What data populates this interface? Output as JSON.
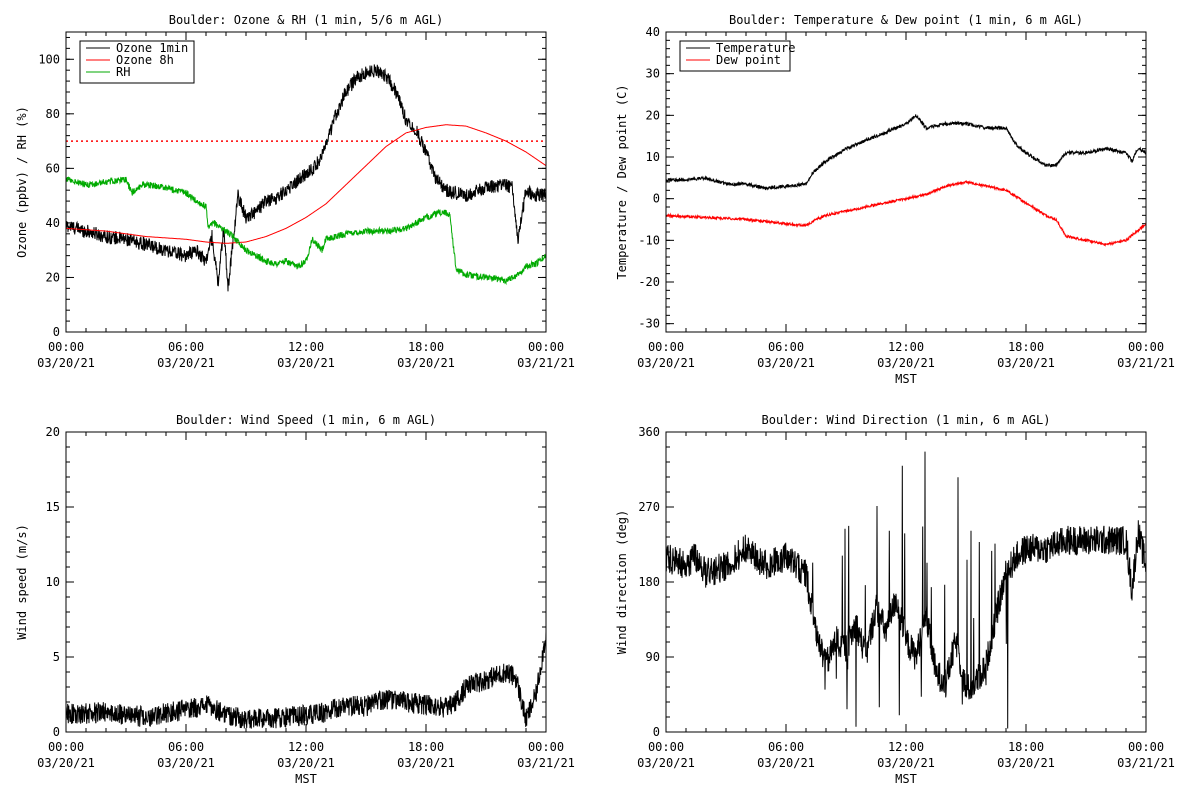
{
  "chart_data": [
    {
      "type": "line",
      "id": "ozone",
      "title": "Boulder: Ozone & RH (1 min, 5/6 m AGL)",
      "xlabel": "",
      "ylabel": "Ozone (ppbv) / RH (%)",
      "xlim": [
        0,
        24
      ],
      "ylim": [
        0,
        110
      ],
      "yticks": [
        0,
        20,
        40,
        60,
        80,
        100
      ],
      "xticks": [
        0,
        6,
        12,
        18,
        24
      ],
      "xtick_labels": [
        [
          "00:00",
          "03/20/21"
        ],
        [
          "06:00",
          "03/20/21"
        ],
        [
          "12:00",
          "03/20/21"
        ],
        [
          "18:00",
          "03/20/21"
        ],
        [
          "00:00",
          "03/21/21"
        ]
      ],
      "legend": "top-left",
      "reference_lines": [
        {
          "y": 70,
          "style": "dotted",
          "color": "#ff0000"
        }
      ],
      "series": [
        {
          "name": "Ozone 1min",
          "color": "#000000",
          "noise": 2.5,
          "x": [
            0,
            1,
            2,
            3,
            4,
            5,
            6,
            6.5,
            7,
            7.3,
            7.6,
            7.9,
            8.1,
            8.3,
            8.6,
            9,
            9.5,
            10,
            10.5,
            11,
            11.5,
            12,
            12.5,
            13,
            13.5,
            14,
            14.5,
            15,
            15.5,
            16,
            16.5,
            17,
            17.5,
            18,
            18.5,
            19,
            19.5,
            20,
            21,
            22,
            22.3,
            22.6,
            23,
            23.5,
            24
          ],
          "y": [
            39,
            37,
            35,
            34,
            32,
            30,
            28,
            30,
            26,
            35,
            18,
            38,
            16,
            30,
            50,
            42,
            44,
            48,
            49,
            52,
            55,
            58,
            61,
            68,
            80,
            88,
            93,
            95,
            96,
            94,
            88,
            78,
            74,
            66,
            56,
            52,
            51,
            50,
            53,
            54,
            53,
            34,
            52,
            50,
            51
          ]
        },
        {
          "name": "Ozone 8h",
          "color": "#ff0000",
          "noise": 0,
          "x": [
            0,
            2,
            4,
            6,
            7,
            8,
            9,
            10,
            11,
            12,
            13,
            14,
            15,
            16,
            17,
            18,
            19,
            20,
            21,
            22,
            23,
            24
          ],
          "y": [
            38,
            37,
            35,
            34,
            33,
            32.5,
            33,
            35,
            38,
            42,
            47,
            54,
            61,
            68,
            73,
            75,
            76,
            75.5,
            73,
            70,
            66,
            61
          ]
        },
        {
          "name": "RH",
          "color": "#00aa00",
          "noise": 1.2,
          "x": [
            0,
            1,
            2,
            3,
            3.3,
            3.8,
            4,
            5,
            5.5,
            6,
            6.5,
            7,
            7.1,
            7.4,
            8,
            8.5,
            9,
            9.5,
            10,
            10.5,
            11,
            11.5,
            12,
            12.3,
            12.8,
            13,
            14,
            15,
            16,
            17,
            17.5,
            18,
            18.8,
            19.2,
            19.5,
            20,
            21,
            22,
            22.6,
            23,
            23.5,
            24
          ],
          "y": [
            56,
            54,
            55,
            56,
            51,
            54,
            54,
            53,
            52,
            51,
            48,
            46,
            38,
            40,
            37,
            34,
            30,
            28,
            26,
            25,
            26,
            24,
            26,
            34,
            30,
            34,
            36,
            37,
            37,
            38,
            40,
            42,
            44,
            43,
            23,
            21,
            20,
            19,
            21,
            24,
            25,
            28
          ]
        }
      ]
    },
    {
      "type": "line",
      "id": "temperature",
      "title": "Boulder: Temperature & Dew point (1 min, 6 m AGL)",
      "xlabel": "MST",
      "ylabel": "Temperature / Dew point (C)",
      "xlim": [
        0,
        24
      ],
      "ylim": [
        -32,
        40
      ],
      "yticks": [
        -30,
        -20,
        -10,
        0,
        10,
        20,
        30,
        40
      ],
      "xticks": [
        0,
        6,
        12,
        18,
        24
      ],
      "xtick_labels": [
        [
          "00:00",
          "03/20/21"
        ],
        [
          "06:00",
          "03/20/21"
        ],
        [
          "12:00",
          "03/20/21"
        ],
        [
          "18:00",
          "03/20/21"
        ],
        [
          "00:00",
          "03/21/21"
        ]
      ],
      "legend": "top-left",
      "series": [
        {
          "name": "Temperature",
          "color": "#000000",
          "noise": 0.4,
          "x": [
            0,
            1,
            2,
            3,
            4,
            5,
            6,
            7,
            7.3,
            8,
            9,
            10,
            11,
            12,
            12.5,
            13,
            14,
            15,
            16,
            17,
            17.5,
            18,
            19,
            19.5,
            20,
            21,
            22,
            23,
            23.3,
            23.6,
            24
          ],
          "y": [
            4.5,
            4.5,
            5,
            3.5,
            3.5,
            2.5,
            3,
            3.5,
            6,
            9,
            12,
            14,
            16,
            18,
            20,
            17,
            18,
            18,
            17,
            17,
            13,
            11,
            8,
            8,
            11,
            11,
            12,
            11,
            9,
            12,
            11
          ]
        },
        {
          "name": "Dew point",
          "color": "#ff0000",
          "noise": 0.3,
          "x": [
            0,
            2,
            4,
            6,
            7,
            7.5,
            8,
            9,
            10,
            11,
            12,
            13,
            14,
            15,
            16,
            17,
            18,
            19,
            19.5,
            20,
            21,
            22,
            23,
            23.5,
            24
          ],
          "y": [
            -4,
            -4.5,
            -5,
            -6,
            -6.5,
            -5,
            -4,
            -3,
            -2,
            -1,
            0,
            1,
            3,
            4,
            3,
            2,
            -1,
            -4,
            -5,
            -9,
            -10,
            -11,
            -10,
            -8,
            -6
          ]
        }
      ]
    },
    {
      "type": "line",
      "id": "wind-speed",
      "title": "Boulder: Wind Speed (1 min, 6 m AGL)",
      "xlabel": "MST",
      "ylabel": "Wind speed (m/s)",
      "xlim": [
        0,
        24
      ],
      "ylim": [
        0,
        20
      ],
      "yticks": [
        0,
        5,
        10,
        15,
        20
      ],
      "xticks": [
        0,
        6,
        12,
        18,
        24
      ],
      "xtick_labels": [
        [
          "00:00",
          "03/20/21"
        ],
        [
          "06:00",
          "03/20/21"
        ],
        [
          "12:00",
          "03/20/21"
        ],
        [
          "18:00",
          "03/20/21"
        ],
        [
          "00:00",
          "03/21/21"
        ]
      ],
      "series": [
        {
          "name": "",
          "color": "#000000",
          "noise": 0.7,
          "x": [
            0,
            2,
            4,
            6,
            7,
            8,
            9,
            10,
            11,
            12,
            13,
            14,
            15,
            16,
            17,
            18,
            19,
            19.5,
            20,
            21,
            22,
            22.5,
            23,
            23.5,
            24
          ],
          "y": [
            1.2,
            1.3,
            1.0,
            1.5,
            1.8,
            1.2,
            0.8,
            0.9,
            1.0,
            1.1,
            1.3,
            1.8,
            1.7,
            2.2,
            2.0,
            1.8,
            1.6,
            2.0,
            3.0,
            3.5,
            4.0,
            3.6,
            0.8,
            2.5,
            6.5
          ]
        }
      ]
    },
    {
      "type": "line",
      "id": "wind-direction",
      "title": "Boulder: Wind Direction (1 min, 6 m AGL)",
      "xlabel": "MST",
      "ylabel": "Wind direction (deg)",
      "xlim": [
        0,
        24
      ],
      "ylim": [
        0,
        360
      ],
      "yticks": [
        0,
        90,
        180,
        270,
        360
      ],
      "xticks": [
        0,
        6,
        12,
        18,
        24
      ],
      "xtick_labels": [
        [
          "00:00",
          "03/20/21"
        ],
        [
          "06:00",
          "03/20/21"
        ],
        [
          "12:00",
          "03/20/21"
        ],
        [
          "18:00",
          "03/20/21"
        ],
        [
          "00:00",
          "03/21/21"
        ]
      ],
      "series": [
        {
          "name": "",
          "color": "#000000",
          "noise": 18,
          "x": [
            0,
            1,
            1.5,
            2,
            3,
            4,
            5,
            6,
            6.5,
            7,
            7.5,
            8,
            8.5,
            9,
            9.5,
            10,
            10.5,
            11,
            11.5,
            12,
            12.5,
            13,
            13.5,
            14,
            14.5,
            15,
            15.5,
            16,
            16.5,
            17,
            17.5,
            18,
            19,
            20,
            21,
            22,
            23,
            23.3,
            23.6,
            24
          ],
          "y": [
            210,
            200,
            210,
            190,
            200,
            220,
            200,
            210,
            200,
            190,
            120,
            80,
            110,
            100,
            130,
            90,
            150,
            120,
            160,
            110,
            90,
            140,
            70,
            60,
            110,
            50,
            60,
            80,
            140,
            190,
            210,
            220,
            220,
            230,
            230,
            230,
            230,
            170,
            240,
            200
          ]
        }
      ]
    }
  ]
}
